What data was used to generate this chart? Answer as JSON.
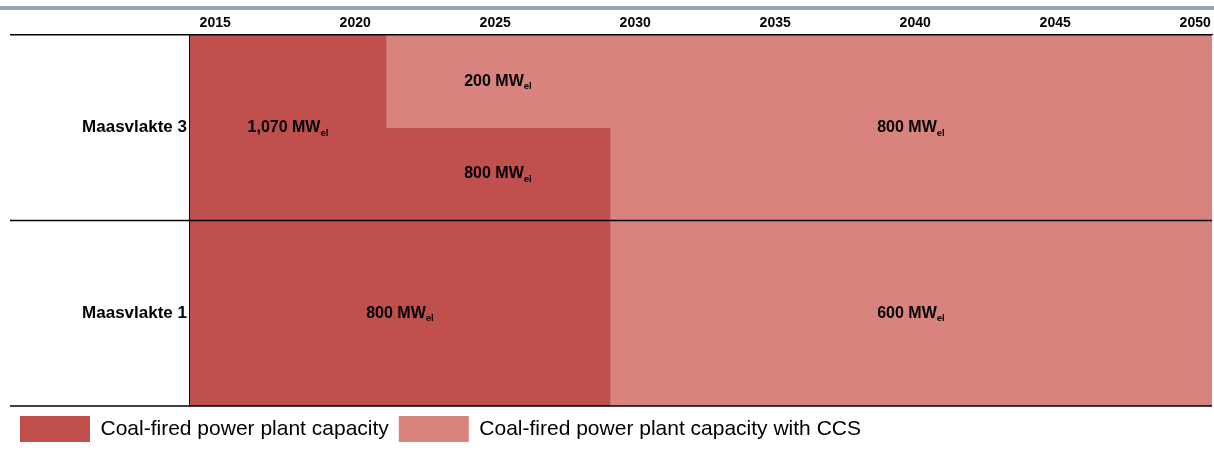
{
  "chart_data": {
    "type": "bar",
    "orientation": "horizontal",
    "categories": [
      "Maasvlakte 3",
      "Maasvlakte 1"
    ],
    "series": [
      {
        "name": "Coal-fired power plant capacity",
        "color": "#c0504d",
        "base": [
          2014.1,
          2014.1
        ],
        "values": [
          7.0,
          15.0
        ]
      },
      {
        "color": "#d9837f",
        "base": [
          2021.1,
          null
        ],
        "values": [
          8.0,
          null
        ]
      },
      {
        "color": "#c0504d",
        "base": [
          2021.1,
          null
        ],
        "values": [
          8.0,
          null
        ]
      },
      {
        "name": "Coal-fired power plant capacity with CCS",
        "color": "#d9837f",
        "base": [
          2029.1,
          2029.1
        ],
        "values": [
          21.5,
          21.5
        ]
      }
    ],
    "xlim": [
      2014.1,
      2050.6
    ],
    "xticks": [
      2015,
      2020,
      2025,
      2030,
      2035,
      2040,
      2045,
      2050
    ],
    "legend": "bottom left",
    "annotations": [
      "1,070 MW$_{el}$",
      "200 MW$_{el}$",
      "800 MW$_{el}$",
      "800 MW$_{el}$",
      "800 MW$_{el}$",
      "600 MW$_{el}$"
    ]
  }
}
